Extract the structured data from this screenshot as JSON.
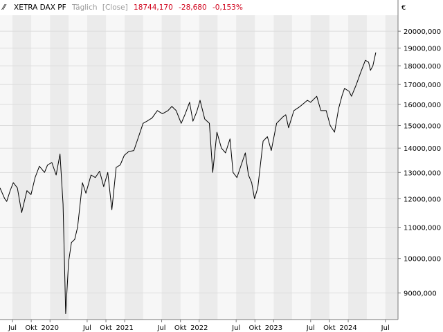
{
  "header": {
    "instrument": "XETRA DAX PF",
    "period": "Täglich",
    "mode": "[Close]",
    "last": "18744,170",
    "change": "-28,680",
    "change_pct": "-0,153%",
    "currency": "€"
  },
  "colors": {
    "line": "#000000",
    "change": "#d0021b",
    "muted": "#9a9a9a",
    "band_light": "#f7f7f7",
    "band_dark": "#ebebeb",
    "grid": "#dcdcdc",
    "axis": "#777777"
  },
  "chart_data": {
    "type": "line",
    "title": "XETRA DAX PF",
    "xlabel": "",
    "ylabel": "",
    "y_scale": "log",
    "ylim": [
      8300,
      21000
    ],
    "xlim": [
      "2019-05-01",
      "2024-09-01"
    ],
    "grid": true,
    "y_ticks": [
      9000,
      10000,
      11000,
      12000,
      13000,
      14000,
      15000,
      16000,
      17000,
      18000,
      19000,
      20000
    ],
    "y_tick_labels": [
      "9000,000",
      "10000,000",
      "11000,000",
      "12000,000",
      "13000,000",
      "14000,000",
      "15000,000",
      "16000,000",
      "17000,000",
      "18000,000",
      "19000,000",
      "20000,000"
    ],
    "x_ticks": [
      {
        "date": "2019-07-01",
        "label": "Jul"
      },
      {
        "date": "2019-10-01",
        "label": "Okt"
      },
      {
        "date": "2020-01-01",
        "label": "2020"
      },
      {
        "date": "2020-07-01",
        "label": "Jul"
      },
      {
        "date": "2020-10-01",
        "label": "Okt"
      },
      {
        "date": "2021-01-01",
        "label": "2021"
      },
      {
        "date": "2021-07-01",
        "label": "Jul"
      },
      {
        "date": "2021-10-01",
        "label": "Okt"
      },
      {
        "date": "2022-01-01",
        "label": "2022"
      },
      {
        "date": "2022-07-01",
        "label": "Jul"
      },
      {
        "date": "2022-10-01",
        "label": "Okt"
      },
      {
        "date": "2023-01-01",
        "label": "2023"
      },
      {
        "date": "2023-07-01",
        "label": "Jul"
      },
      {
        "date": "2023-10-01",
        "label": "Okt"
      },
      {
        "date": "2024-01-01",
        "label": "2024"
      },
      {
        "date": "2024-07-01",
        "label": "Jul"
      }
    ],
    "series": [
      {
        "x": [
          "2019-05-01",
          "2019-05-24",
          "2019-06-03",
          "2019-06-20",
          "2019-07-05",
          "2019-07-25",
          "2019-08-15",
          "2019-09-10",
          "2019-09-30",
          "2019-10-20",
          "2019-11-10",
          "2019-12-05",
          "2019-12-20",
          "2020-01-10",
          "2020-01-31",
          "2020-02-19",
          "2020-03-05",
          "2020-03-18",
          "2020-04-01",
          "2020-04-15",
          "2020-05-01",
          "2020-05-15",
          "2020-06-08",
          "2020-06-25",
          "2020-07-20",
          "2020-08-10",
          "2020-08-31",
          "2020-09-20",
          "2020-10-10",
          "2020-10-30",
          "2020-11-20",
          "2020-12-10",
          "2020-12-30",
          "2021-01-20",
          "2021-02-15",
          "2021-03-10",
          "2021-04-01",
          "2021-04-20",
          "2021-05-15",
          "2021-06-10",
          "2021-07-05",
          "2021-08-01",
          "2021-08-20",
          "2021-09-10",
          "2021-10-05",
          "2021-10-25",
          "2021-11-15",
          "2021-12-01",
          "2021-12-20",
          "2022-01-05",
          "2022-01-28",
          "2022-02-20",
          "2022-03-08",
          "2022-03-29",
          "2022-04-20",
          "2022-05-10",
          "2022-06-01",
          "2022-06-16",
          "2022-07-05",
          "2022-08-15",
          "2022-08-30",
          "2022-09-15",
          "2022-09-29",
          "2022-10-15",
          "2022-11-10",
          "2022-12-01",
          "2022-12-20",
          "2023-01-15",
          "2023-02-15",
          "2023-03-01",
          "2023-03-15",
          "2023-04-10",
          "2023-05-10",
          "2023-06-15",
          "2023-07-01",
          "2023-07-31",
          "2023-08-20",
          "2023-09-15",
          "2023-10-05",
          "2023-10-26",
          "2023-11-15",
          "2023-12-01",
          "2023-12-14",
          "2024-01-05",
          "2024-01-17",
          "2024-02-10",
          "2024-03-01",
          "2024-03-25",
          "2024-04-10",
          "2024-04-19",
          "2024-05-01",
          "2024-05-15"
        ],
        "y": [
          12400,
          12000,
          11900,
          12300,
          12600,
          12400,
          11500,
          12300,
          12150,
          12800,
          13250,
          13000,
          13300,
          13400,
          12900,
          13750,
          11800,
          8450,
          9900,
          10500,
          10600,
          11000,
          12600,
          12200,
          12900,
          12800,
          13050,
          12450,
          13000,
          11600,
          13200,
          13300,
          13700,
          13850,
          13900,
          14500,
          15100,
          15200,
          15350,
          15700,
          15550,
          15700,
          15900,
          15700,
          15100,
          15550,
          16100,
          15200,
          15650,
          16200,
          15300,
          15100,
          13000,
          14700,
          14000,
          13800,
          14400,
          13000,
          12800,
          13800,
          12900,
          12600,
          12000,
          12400,
          14300,
          14500,
          13900,
          15100,
          15400,
          15500,
          14900,
          15700,
          15900,
          16200,
          16100,
          16400,
          15700,
          15700,
          15000,
          14700,
          15800,
          16400,
          16800,
          16650,
          16400,
          17000,
          17600,
          18300,
          18200,
          17750,
          18000,
          18744.17
        ]
      }
    ]
  }
}
